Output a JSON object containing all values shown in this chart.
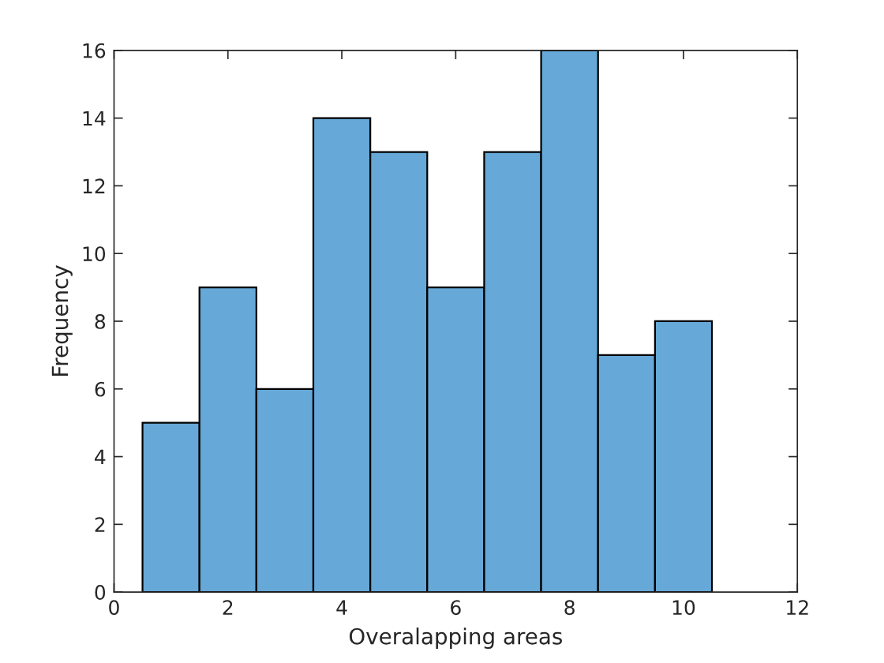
{
  "chart_data": {
    "type": "histogram",
    "xlabel": "Overalapping areas",
    "ylabel": "Frequency",
    "bins": [
      0.5,
      1.5,
      2.5,
      3.5,
      4.5,
      5.5,
      6.5,
      7.5,
      8.5,
      9.5,
      10.5
    ],
    "values": [
      5,
      9,
      6,
      14,
      13,
      9,
      13,
      16,
      7,
      8
    ],
    "color": "#66a8d7",
    "xlim": [
      0,
      12
    ],
    "xticks": [
      0,
      2,
      4,
      6,
      8,
      10,
      12
    ],
    "ylim": [
      0,
      16
    ],
    "yticks": [
      0,
      2,
      4,
      6,
      8,
      10,
      12,
      14,
      16
    ],
    "grid": false
  }
}
